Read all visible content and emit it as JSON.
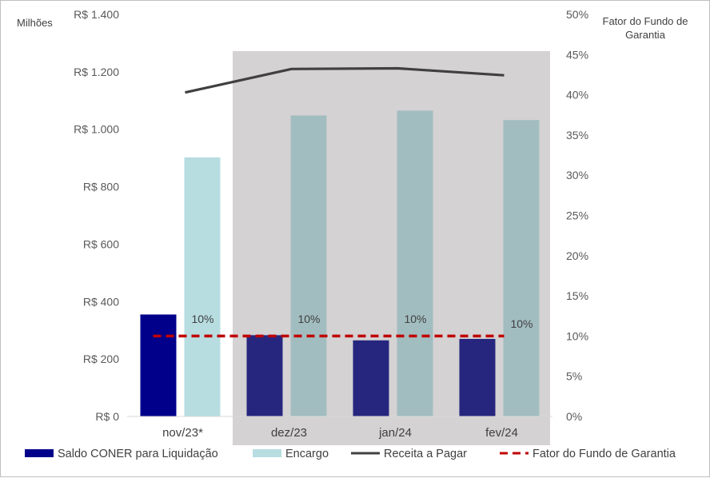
{
  "chart_data": {
    "type": "bar",
    "categories": [
      "nov/23*",
      "dez/23",
      "jan/24",
      "fev/24"
    ],
    "series": [
      {
        "name": "Saldo CONER para Liquidação",
        "kind": "bar",
        "axis": "left",
        "values": [
          355,
          283,
          265,
          270
        ],
        "color": "#00008b",
        "color_shaded": "#26267f"
      },
      {
        "name": "Encargo",
        "kind": "bar",
        "axis": "left",
        "values": [
          902,
          1048,
          1065,
          1032
        ],
        "color": "#b7dde1",
        "color_shaded": "#a2bdc0"
      },
      {
        "name": "Receita a Pagar",
        "kind": "line",
        "axis": "left",
        "values": [
          1128,
          1210,
          1212,
          1188
        ],
        "color": "#404040"
      },
      {
        "name": "Fator do Fundo de Garantia",
        "kind": "dashed-line",
        "axis": "right",
        "values": [
          10,
          10,
          10,
          10
        ],
        "color": "#c00000"
      }
    ],
    "data_labels": [
      "10%",
      "10%",
      "10%",
      "10%"
    ],
    "left_axis": {
      "title": "Milhões",
      "ylim": [
        0,
        1400
      ],
      "ticks": [
        0,
        200,
        400,
        600,
        800,
        1000,
        1200,
        1400
      ],
      "tick_labels": [
        "R$ 0",
        "R$ 200",
        "R$ 400",
        "R$ 600",
        "R$ 800",
        "R$ 1.000",
        "R$ 1.200",
        "R$ 1.400"
      ]
    },
    "right_axis": {
      "title_lines": [
        "Fator do Fundo de",
        "Garantia"
      ],
      "ylim": [
        0,
        50
      ],
      "ticks": [
        0,
        5,
        10,
        15,
        20,
        25,
        30,
        35,
        40,
        45,
        50
      ],
      "tick_labels": [
        "0%",
        "5%",
        "10%",
        "15%",
        "20%",
        "25%",
        "30%",
        "35%",
        "40%",
        "45%",
        "50%"
      ]
    },
    "shaded_categories": [
      "dez/23",
      "jan/24",
      "fev/24"
    ],
    "shade_color": "#d4d2d3",
    "grid": false,
    "legend_position": "bottom"
  }
}
